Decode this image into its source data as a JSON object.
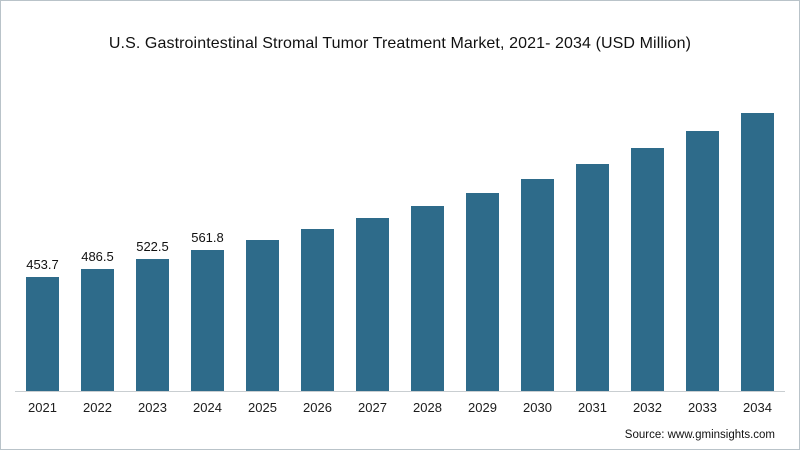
{
  "chart": {
    "title": "U.S. Gastrointestinal Stromal Tumor Treatment Market, 2021- 2034 (USD Million)",
    "source": "Source: www.gminsights.com",
    "bar_color": "#2e6b8a"
  },
  "chart_data": {
    "type": "bar",
    "title": "U.S. Gastrointestinal Stromal Tumor Treatment Market, 2021- 2034 (USD Million)",
    "xlabel": "",
    "ylabel": "USD Million",
    "categories": [
      "2021",
      "2022",
      "2023",
      "2024",
      "2025",
      "2026",
      "2027",
      "2028",
      "2029",
      "2030",
      "2031",
      "2032",
      "2033",
      "2034"
    ],
    "values": [
      453.7,
      486.5,
      522.5,
      561.8,
      601.0,
      643.0,
      688.0,
      736.0,
      788.0,
      843.0,
      902.0,
      965.0,
      1033.0,
      1105.0
    ],
    "value_labels": [
      "453.7",
      "486.5",
      "522.5",
      "561.8",
      "",
      "",
      "",
      "",
      "",
      "",
      "",
      "",
      "",
      ""
    ],
    "ylim": [
      0,
      1160
    ],
    "grid": false,
    "legend": null,
    "notes": "Only the first four bars (2021-2024) display data labels; 2025-2034 values are estimated from bar heights."
  }
}
